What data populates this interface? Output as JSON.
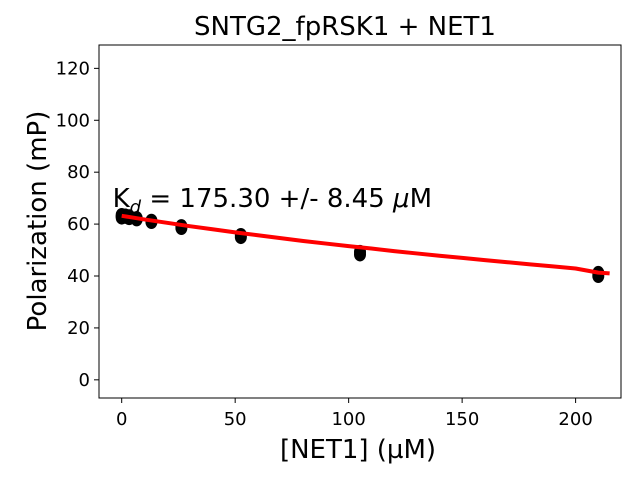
{
  "chart_data": {
    "type": "scatter",
    "title": "SNTG2_fpRSK1 + NET1",
    "xlabel": "[NET1] (µM)",
    "ylabel": "Polarization (mP)",
    "xlim": [
      -10,
      220
    ],
    "ylim": [
      -7,
      129
    ],
    "x_ticks": [
      0,
      50,
      100,
      150,
      200
    ],
    "y_ticks": [
      0,
      20,
      40,
      60,
      80,
      100,
      120
    ],
    "grid": false,
    "annotation": {
      "main": "K",
      "subscript": "d",
      "rest": " = 175.30 +/- 8.45 ",
      "unit_greek": "μ",
      "unit_rest": "M",
      "x": -4,
      "y": 70
    },
    "series": [
      {
        "kind": "points",
        "color": "#000000",
        "x": [
          0,
          0,
          0,
          1.6,
          1.6,
          3.3,
          3.3,
          6.6,
          6.6,
          13.1,
          13.1,
          26.3,
          26.3,
          52.5,
          52.5,
          105,
          105,
          210,
          210
        ],
        "y": [
          62.5,
          63.5,
          63.0,
          62.8,
          63.3,
          62.3,
          63.0,
          61.8,
          62.3,
          60.8,
          61.3,
          58.5,
          59.2,
          55.0,
          55.8,
          48.3,
          49.3,
          40.0,
          41.2
        ]
      },
      {
        "kind": "fit",
        "color": "#ff0000",
        "x": [
          0,
          10,
          20,
          30,
          40,
          50,
          60,
          70,
          80,
          90,
          100,
          110,
          120,
          130,
          140,
          150,
          160,
          170,
          180,
          190,
          200,
          210,
          215
        ],
        "y": [
          63.2,
          61.8,
          60.5,
          59.2,
          58.0,
          56.8,
          55.7,
          54.6,
          53.5,
          52.5,
          51.5,
          50.6,
          49.6,
          48.7,
          47.8,
          47.0,
          46.1,
          45.3,
          44.5,
          43.7,
          42.9,
          41.3,
          41.0
        ]
      }
    ]
  }
}
